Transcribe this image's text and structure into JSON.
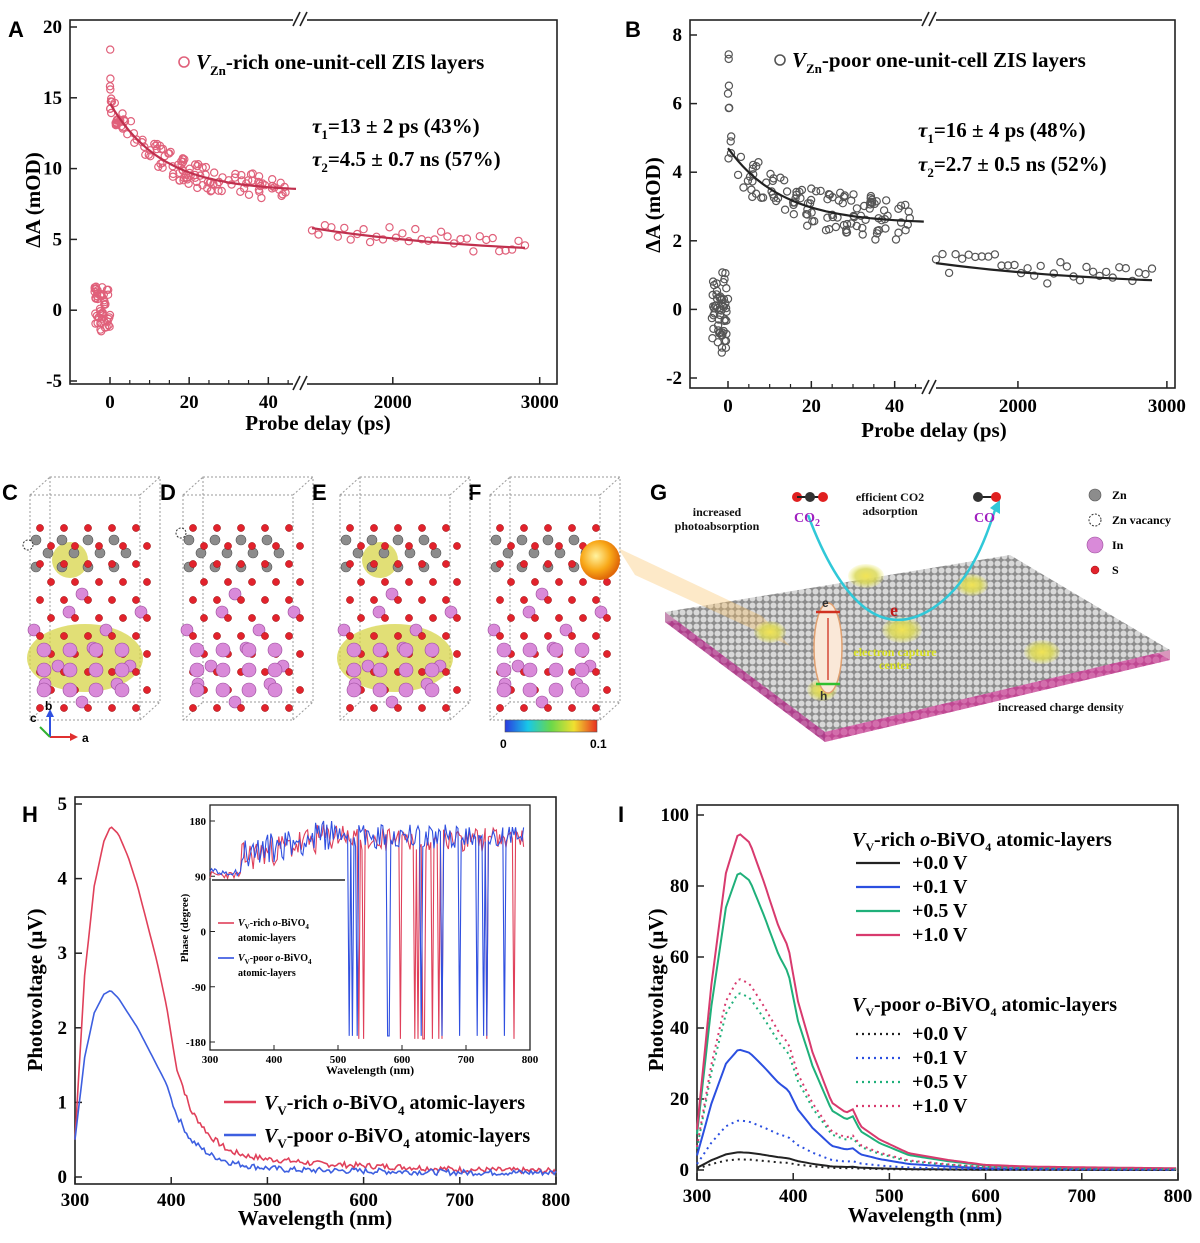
{
  "panel_labels": {
    "A": "A",
    "B": "B",
    "C": "C",
    "D": "D",
    "E": "E",
    "F": "F",
    "G": "G",
    "H": "H",
    "I": "I"
  },
  "chart_data": [
    {
      "id": "A",
      "type": "scatter",
      "xlabel": "Probe delay (ps)",
      "ylabel": "ΔA (mOD)",
      "xticks_left": [
        "0",
        "20",
        "40"
      ],
      "xticks_right": [
        "2000",
        "3000"
      ],
      "yticks": [
        "-5",
        "0",
        "5",
        "10",
        "15",
        "20"
      ],
      "ylim": [
        -5,
        20
      ],
      "legend": {
        "prefix": "V",
        "sub": "Zn",
        "suffix": "-rich one-unit-cell ZIS layers"
      },
      "annotation_1": {
        "tau": "τ",
        "sub": "1",
        "text": "=13 ± 2 ps (43%)"
      },
      "annotation_2": {
        "tau": "τ",
        "sub": "2",
        "text": "=4.5 ± 0.7 ns (57%)"
      },
      "fit_left": {
        "x": [
          0,
          47
        ],
        "y0": 14.6,
        "y_end": 8.4
      },
      "fit_right": {
        "x": [
          1450,
          2900
        ],
        "y": [
          5.8,
          4.4
        ]
      },
      "color": "#e0607a"
    },
    {
      "id": "B",
      "type": "scatter",
      "xlabel": "Probe delay (ps)",
      "ylabel": "ΔA (mOD)",
      "xticks_left": [
        "0",
        "20",
        "40"
      ],
      "xticks_right": [
        "2000",
        "3000"
      ],
      "yticks": [
        "-2",
        "0",
        "2",
        "4",
        "6",
        "8"
      ],
      "ylim": [
        -2,
        8
      ],
      "legend": {
        "prefix": "V",
        "sub": "Zn",
        "suffix": "-poor one-unit-cell ZIS layers"
      },
      "annotation_1": {
        "tau": "τ",
        "sub": "1",
        "text": "=16 ± 4 ps (48%)"
      },
      "annotation_2": {
        "tau": "τ",
        "sub": "2",
        "text": "=2.7 ± 0.5 ns (52%)"
      },
      "fit_left": {
        "x": [
          0,
          47
        ],
        "y0": 4.7,
        "y_end": 2.5
      },
      "fit_right": {
        "x": [
          1450,
          2900
        ],
        "y": [
          1.35,
          0.85
        ]
      },
      "color": "#555555"
    },
    {
      "id": "H",
      "type": "line",
      "xlabel": "Wavelength (nm)",
      "ylabel": "Photovoltage (μV)",
      "xticks": [
        "300",
        "400",
        "500",
        "600",
        "700",
        "800"
      ],
      "yticks": [
        "0",
        "1",
        "2",
        "3",
        "4",
        "5"
      ],
      "xlim": [
        300,
        800
      ],
      "ylim": [
        0,
        5
      ],
      "series": [
        {
          "name": "V_V-rich o-BiVO4 atomic-layers",
          "color": "#e0405a",
          "x": [
            300,
            310,
            320,
            330,
            337,
            345,
            355,
            365,
            375,
            385,
            395,
            405,
            420,
            440,
            460,
            480,
            500,
            520,
            550,
            600,
            650,
            700,
            750,
            800
          ],
          "y": [
            0.5,
            2.7,
            3.9,
            4.5,
            4.7,
            4.6,
            4.3,
            3.9,
            3.4,
            2.9,
            2.3,
            1.5,
            0.9,
            0.55,
            0.35,
            0.28,
            0.24,
            0.22,
            0.18,
            0.15,
            0.13,
            0.1,
            0.09,
            0.08
          ]
        },
        {
          "name": "V_V-poor o-BiVO4 atomic-layers",
          "color": "#3d5fe0",
          "x": [
            300,
            310,
            320,
            330,
            337,
            345,
            355,
            365,
            375,
            385,
            395,
            405,
            420,
            440,
            460,
            480,
            500,
            520,
            550,
            600,
            650,
            700,
            750,
            800
          ],
          "y": [
            0.5,
            1.6,
            2.2,
            2.45,
            2.5,
            2.4,
            2.2,
            2.0,
            1.75,
            1.5,
            1.25,
            0.85,
            0.5,
            0.3,
            0.2,
            0.15,
            0.12,
            0.1,
            0.09,
            0.08,
            0.07,
            0.06,
            0.06,
            0.06
          ]
        }
      ],
      "legend": [
        {
          "prefix": "V",
          "sub": "V",
          "mid": "-rich ",
          "ital": "o",
          "suffix": "-BiVO",
          "sub2": "4",
          "tail": " atomic-layers"
        },
        {
          "prefix": "V",
          "sub": "V",
          "mid": "-poor ",
          "ital": "o",
          "suffix": "-BiVO",
          "sub2": "4",
          "tail": " atomic-layers"
        }
      ],
      "inset": {
        "xlabel": "Wavelength (nm)",
        "ylabel": "Phase (degree)",
        "xticks": [
          "300",
          "400",
          "500",
          "600",
          "700",
          "800"
        ],
        "yticks": [
          "-180",
          "-90",
          "0",
          "90",
          "180"
        ],
        "legend": [
          {
            "prefix": "V",
            "sub": "V",
            "mid": "-rich ",
            "ital": "o",
            "suffix": "-BiVO",
            "sub2": "4",
            "tail": "atomic-layers"
          },
          {
            "prefix": "V",
            "sub": "V",
            "mid": "-poor ",
            "ital": "o",
            "suffix": "-BiVO",
            "sub2": "4",
            "tail": "atomic-layers"
          }
        ]
      }
    },
    {
      "id": "I",
      "type": "line",
      "xlabel": "Wavelength (nm)",
      "ylabel": "Photovoltage (μV)",
      "xticks": [
        "300",
        "400",
        "500",
        "600",
        "700",
        "800"
      ],
      "yticks": [
        "0",
        "20",
        "40",
        "60",
        "80",
        "100"
      ],
      "xlim": [
        300,
        800
      ],
      "ylim": [
        0,
        100
      ],
      "group_rich": {
        "prefix": "V",
        "sub": "V",
        "mid": "-rich ",
        "ital": "o",
        "suffix": "-BiVO",
        "sub2": "4",
        "tail": " atomic-layers"
      },
      "group_poor": {
        "prefix": "V",
        "sub": "V",
        "mid": "-poor ",
        "ital": "o",
        "suffix": "-BiVO",
        "sub2": "4",
        "tail": " atomic-layers"
      },
      "series": [
        {
          "name": "+0.0 V",
          "group": "rich",
          "style": "solid",
          "color": "#222222",
          "peak": 5
        },
        {
          "name": "+0.1 V",
          "group": "rich",
          "style": "solid",
          "color": "#2b4fe0",
          "peak": 34
        },
        {
          "name": "+0.5 V",
          "group": "rich",
          "style": "solid",
          "color": "#1fb07a",
          "peak": 84
        },
        {
          "name": "+1.0 V",
          "group": "rich",
          "style": "solid",
          "color": "#d83a6e",
          "peak": 95
        },
        {
          "name": "+0.0 V",
          "group": "poor",
          "style": "dotted",
          "color": "#222222",
          "peak": 3
        },
        {
          "name": "+0.1 V",
          "group": "poor",
          "style": "dotted",
          "color": "#2b4fe0",
          "peak": 14
        },
        {
          "name": "+0.5 V",
          "group": "poor",
          "style": "dotted",
          "color": "#1fb07a",
          "peak": 50
        },
        {
          "name": "+1.0 V",
          "group": "poor",
          "style": "dotted",
          "color": "#d83a6e",
          "peak": 54
        }
      ]
    }
  ],
  "structures": {
    "axes_labels": {
      "a": "a",
      "b": "b",
      "c": "c"
    },
    "colorbar": {
      "min": "0",
      "max": "0.1"
    }
  },
  "schematic": {
    "photoabsorption": "increased photoabsorption",
    "co2_adsorption": "efficient CO2 adsorption",
    "co2": {
      "text": "CO",
      "sub": "2"
    },
    "co": "CO",
    "electron_capture": "electron capture center",
    "charge_density": "increased charge density",
    "electron": "e",
    "hole": "h",
    "legend": [
      {
        "label": "Zn",
        "kind": "zn"
      },
      {
        "label": "Zn vacancy",
        "kind": "vac"
      },
      {
        "label": "In",
        "kind": "in"
      },
      {
        "label": "S",
        "kind": "s"
      }
    ]
  }
}
